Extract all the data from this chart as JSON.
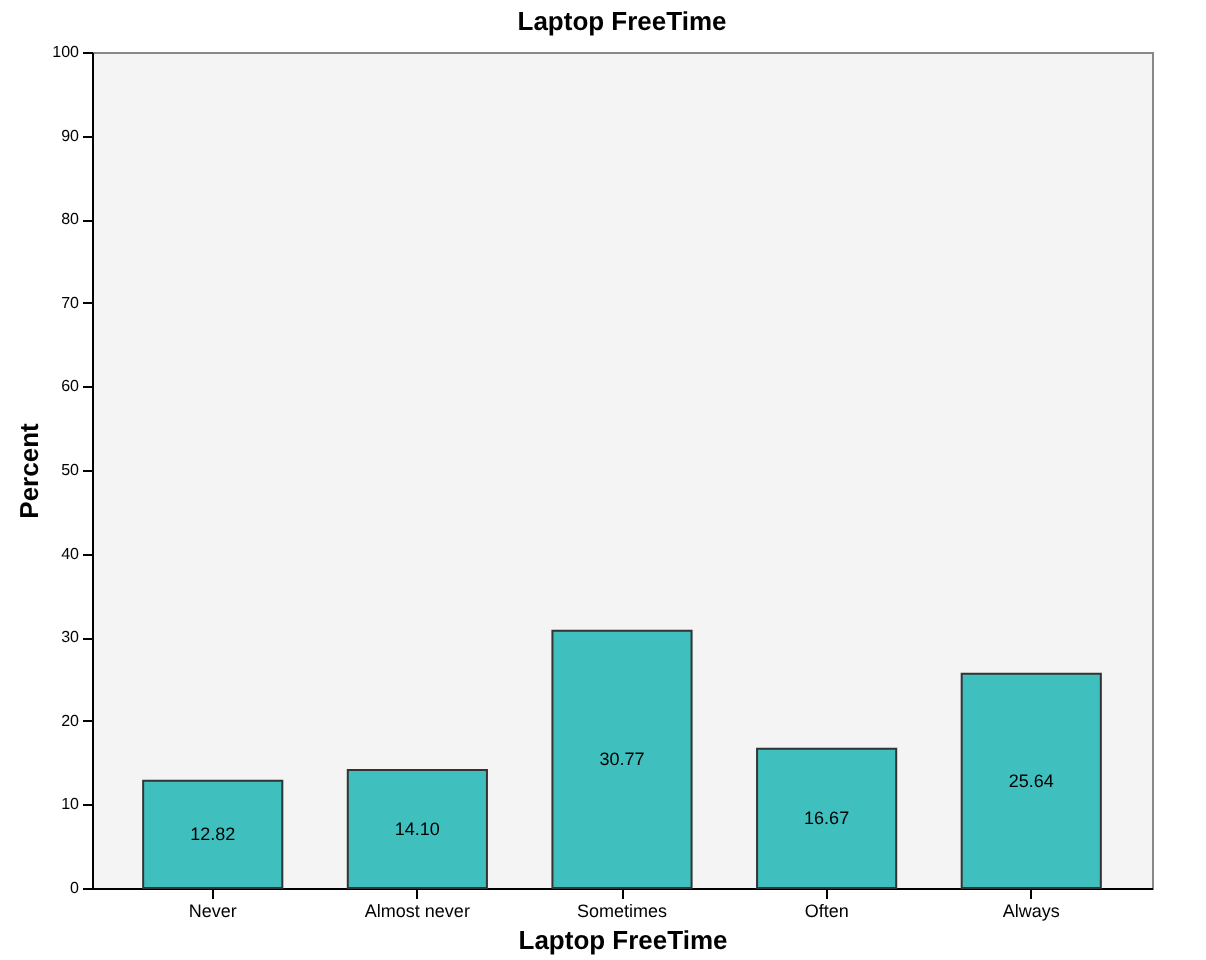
{
  "chart_data": {
    "type": "bar",
    "title": "Laptop FreeTime",
    "xlabel": "Laptop FreeTime",
    "ylabel": "Percent",
    "categories": [
      "Never",
      "Almost never",
      "Sometimes",
      "Often",
      "Always"
    ],
    "values": [
      12.82,
      14.1,
      30.77,
      16.67,
      25.64
    ],
    "value_labels": [
      "12.82",
      "14.10",
      "30.77",
      "16.67",
      "25.64"
    ],
    "color": "#40bfbf",
    "ylim": [
      0,
      100
    ],
    "yticks": [
      0,
      10,
      20,
      30,
      40,
      50,
      60,
      70,
      80,
      90,
      100
    ],
    "grid": false
  }
}
